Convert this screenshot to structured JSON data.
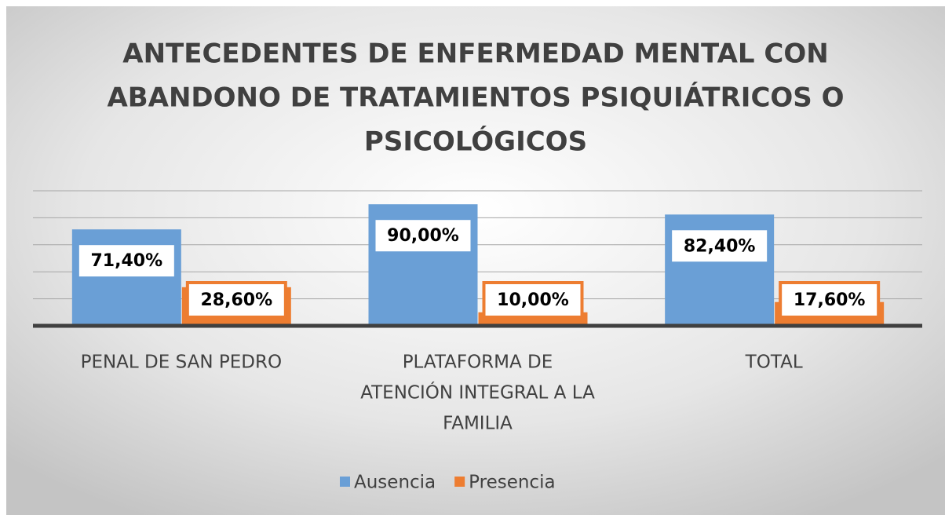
{
  "chart_data": {
    "type": "bar",
    "title": [
      "ANTECEDENTES DE ENFERMEDAD MENTAL CON",
      "ABANDONO DE TRATAMIENTOS PSIQUIÁTRICOS O",
      "PSICOLÓGICOS"
    ],
    "categories": [
      [
        "PENAL DE SAN PEDRO"
      ],
      [
        "PLATAFORMA DE",
        "ATENCIÓN INTEGRAL A LA",
        "FAMILIA"
      ],
      [
        "TOTAL"
      ]
    ],
    "series": [
      {
        "name": "Ausencia",
        "color": "#6a9fd6",
        "values": [
          71.4,
          90,
          82.4
        ],
        "value_labels": [
          "71,40%",
          "90,00%",
          "82,40%"
        ]
      },
      {
        "name": "Presencia",
        "color": "#ed7d31",
        "values": [
          28.6,
          10,
          17.6
        ],
        "value_labels": [
          "28,60%",
          "10,00%",
          "17,60%"
        ]
      }
    ],
    "ylim": [
      0,
      100
    ],
    "yticks": [
      0,
      20,
      40,
      60,
      80,
      100
    ],
    "grid": true,
    "legend": "bottom"
  }
}
